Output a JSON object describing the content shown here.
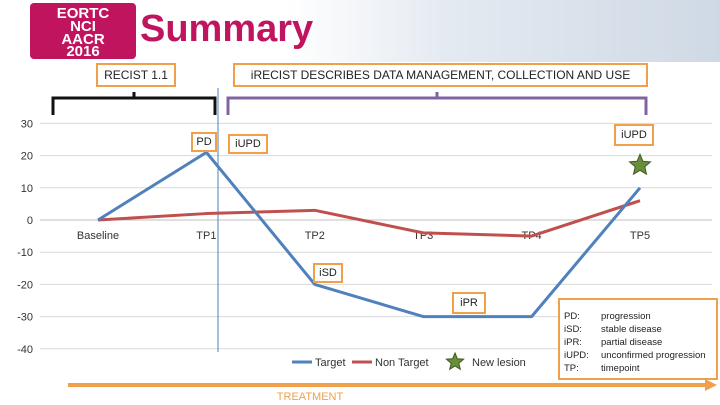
{
  "title": "Summary",
  "logo": {
    "lines": [
      "EORTC",
      "NCI",
      "AACR",
      "2016"
    ]
  },
  "boxes": {
    "recist": "RECIST 1.1",
    "irecist": "iRECIST DESCRIBES DATA MANAGEMENT, COLLECTION AND USE",
    "pd": "PD",
    "iupd_left": "iUPD",
    "iupd_right": "iUPD",
    "isd": "iSD",
    "ipr": "iPR"
  },
  "treatment_label": "TREATMENT",
  "abbreviations": [
    {
      "key": "PD:",
      "value": "progression"
    },
    {
      "key": "iSD:",
      "value": "stable disease"
    },
    {
      "key": "iPR:",
      "value": "partial disease"
    },
    {
      "key": "iUPD:",
      "value": "unconfirmed progression"
    },
    {
      "key": "TP:",
      "value": "timepoint"
    }
  ],
  "colors": {
    "accent": "#c0155e",
    "target": "#4f81bd",
    "non_target": "#c0504d",
    "box_border": "#f0a04b",
    "bracket_purple": "#8064a2",
    "arrow": "#f0a04b",
    "star": "#6a8f3c"
  },
  "chart_data": {
    "type": "line",
    "title": "",
    "xlabel": "",
    "ylabel": "",
    "categories": [
      "Baseline",
      "TP1",
      "TP2",
      "TP3",
      "TP4",
      "TP5"
    ],
    "x": [
      0,
      1,
      2,
      3,
      4,
      5
    ],
    "ylim": [
      -40,
      30
    ],
    "yticks": [
      "30",
      "20",
      "10",
      "0",
      "-10",
      "-20",
      "-30",
      "-40"
    ],
    "series": [
      {
        "name": "Target",
        "color": "#4f81bd",
        "x": [
          0,
          1,
          2,
          3,
          4,
          5
        ],
        "values": [
          0,
          21,
          -20,
          -30,
          -30,
          10
        ]
      },
      {
        "name": "Non Target",
        "color": "#c0504d",
        "x": [
          0,
          1,
          2,
          3,
          4,
          5
        ],
        "values": [
          0,
          2,
          3,
          -4,
          -5,
          6
        ]
      }
    ],
    "markers": [
      {
        "name": "New lesion",
        "shape": "star",
        "x": 5,
        "y": 17
      }
    ],
    "legend": {
      "position": "bottom",
      "entries": [
        "Target",
        "Non Target",
        "New lesion"
      ]
    },
    "grid": true
  }
}
